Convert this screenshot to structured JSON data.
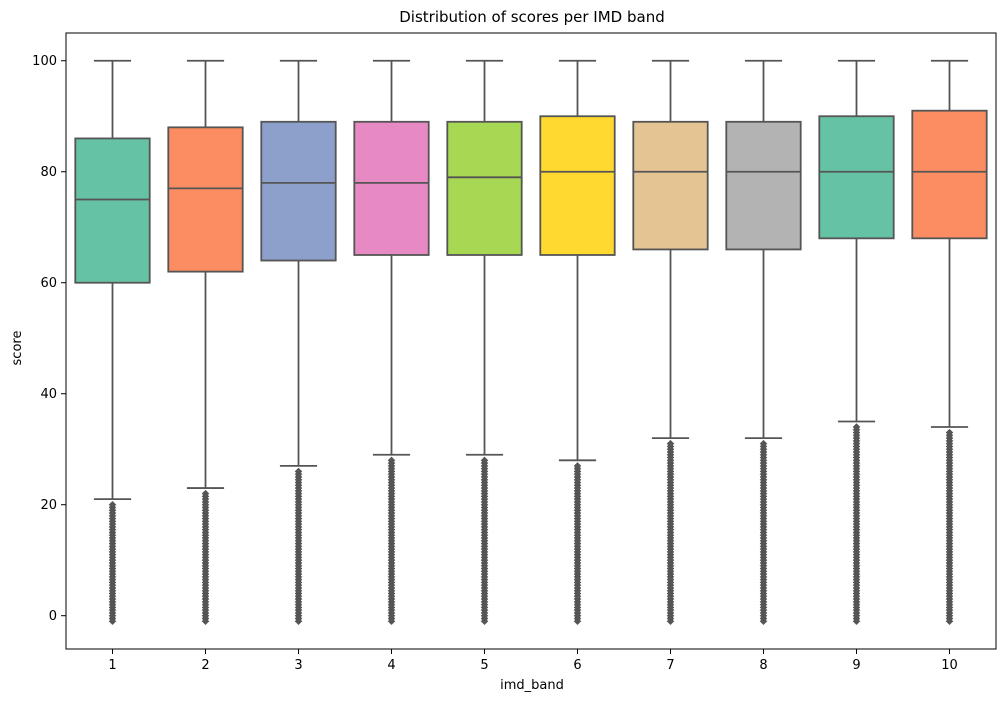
{
  "chart_data": {
    "type": "box",
    "title": "Distribution of scores per IMD band",
    "xlabel": "imd_band",
    "ylabel": "score",
    "categories": [
      "1",
      "2",
      "3",
      "4",
      "5",
      "6",
      "7",
      "8",
      "9",
      "10"
    ],
    "ylim": [
      -6,
      105
    ],
    "yticks": [
      0,
      20,
      40,
      60,
      80,
      100
    ],
    "grid": false,
    "legend": "none",
    "palette": [
      "#66c2a5",
      "#fc8d62",
      "#8da0cb",
      "#e78ac3",
      "#a6d854",
      "#ffd92f",
      "#e5c494",
      "#b3b3b3",
      "#66c2a5",
      "#fc8d62"
    ],
    "line_color": "#555555",
    "boxes": [
      {
        "category": "1",
        "whisker_low": 21,
        "q1": 60,
        "median": 75,
        "q3": 86,
        "whisker_high": 100,
        "outliers_range": [
          -1,
          20
        ]
      },
      {
        "category": "2",
        "whisker_low": 23,
        "q1": 62,
        "median": 77,
        "q3": 88,
        "whisker_high": 100,
        "outliers_range": [
          -1,
          22
        ]
      },
      {
        "category": "3",
        "whisker_low": 27,
        "q1": 64,
        "median": 78,
        "q3": 89,
        "whisker_high": 100,
        "outliers_range": [
          -1,
          26
        ]
      },
      {
        "category": "4",
        "whisker_low": 29,
        "q1": 65,
        "median": 78,
        "q3": 89,
        "whisker_high": 100,
        "outliers_range": [
          -1,
          28
        ]
      },
      {
        "category": "5",
        "whisker_low": 29,
        "q1": 65,
        "median": 79,
        "q3": 89,
        "whisker_high": 100,
        "outliers_range": [
          -1,
          28
        ]
      },
      {
        "category": "6",
        "whisker_low": 28,
        "q1": 65,
        "median": 80,
        "q3": 90,
        "whisker_high": 100,
        "outliers_range": [
          -1,
          27
        ]
      },
      {
        "category": "7",
        "whisker_low": 32,
        "q1": 66,
        "median": 80,
        "q3": 89,
        "whisker_high": 100,
        "outliers_range": [
          -1,
          31
        ]
      },
      {
        "category": "8",
        "whisker_low": 32,
        "q1": 66,
        "median": 80,
        "q3": 89,
        "whisker_high": 100,
        "outliers_range": [
          -1,
          31
        ]
      },
      {
        "category": "9",
        "whisker_low": 35,
        "q1": 68,
        "median": 80,
        "q3": 90,
        "whisker_high": 100,
        "outliers_range": [
          -1,
          34
        ]
      },
      {
        "category": "10",
        "whisker_low": 34,
        "q1": 68,
        "median": 80,
        "q3": 91,
        "whisker_high": 100,
        "outliers_range": [
          -1,
          33
        ]
      }
    ]
  }
}
